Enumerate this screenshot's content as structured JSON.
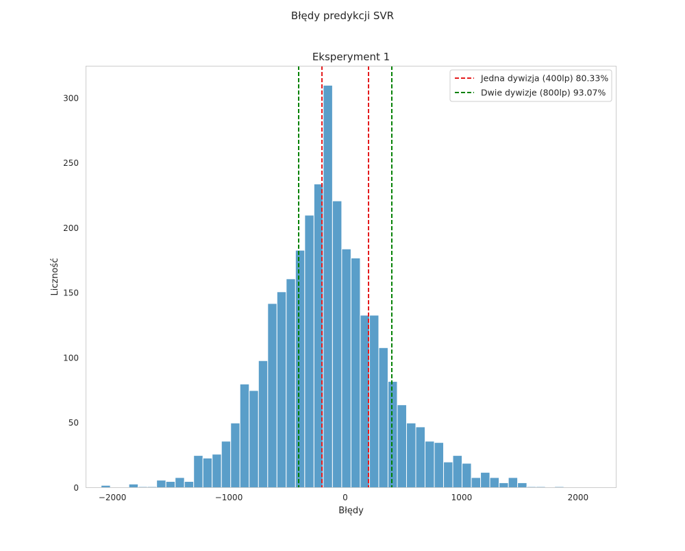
{
  "figure": {
    "suptitle": "Błędy predykcji SVR"
  },
  "chart_data": {
    "type": "bar",
    "subtype": "histogram",
    "title": "Eksperyment 1",
    "xlabel": "Błędy",
    "ylabel": "Liczność",
    "xlim": [
      -2230,
      2330
    ],
    "ylim": [
      0,
      325
    ],
    "x_ticks": [
      -2000,
      -1000,
      0,
      1000,
      2000
    ],
    "x_tick_labels": [
      "−2000",
      "−1000",
      "0",
      "1000",
      "2000"
    ],
    "y_ticks": [
      0,
      50,
      100,
      150,
      200,
      250,
      300
    ],
    "y_tick_labels": [
      "0",
      "50",
      "100",
      "150",
      "200",
      "250",
      "300"
    ],
    "grid": false,
    "bin_width": 79.5,
    "bin_start": -2097,
    "series": [
      {
        "values": [
          2,
          0,
          0,
          3,
          1,
          1,
          6,
          5,
          8,
          5,
          25,
          23,
          26,
          36,
          50,
          80,
          75,
          98,
          142,
          151,
          161,
          183,
          210,
          234,
          310,
          221,
          184,
          177,
          133,
          133,
          108,
          82,
          64,
          50,
          47,
          36,
          35,
          20,
          25,
          19,
          8,
          12,
          8,
          4,
          8,
          4,
          1,
          1,
          0,
          1
        ]
      }
    ],
    "bar_color": "#5a9ec9",
    "vlines": [
      {
        "x": -200,
        "color": "#e41a1c",
        "style": "dashed",
        "legend": 0
      },
      {
        "x": 200,
        "color": "#e41a1c",
        "style": "dashed",
        "legend": 0
      },
      {
        "x": -400,
        "color": "#008000",
        "style": "dashed",
        "legend": 1
      },
      {
        "x": 400,
        "color": "#008000",
        "style": "dashed",
        "legend": 1
      }
    ],
    "legend": {
      "placement": "top-right",
      "entries": [
        {
          "label": "Jedna dywizja (400lp) 80.33%",
          "color": "#e41a1c"
        },
        {
          "label": "Dwie dywizje (800lp) 93.07%",
          "color": "#008000"
        }
      ]
    }
  }
}
